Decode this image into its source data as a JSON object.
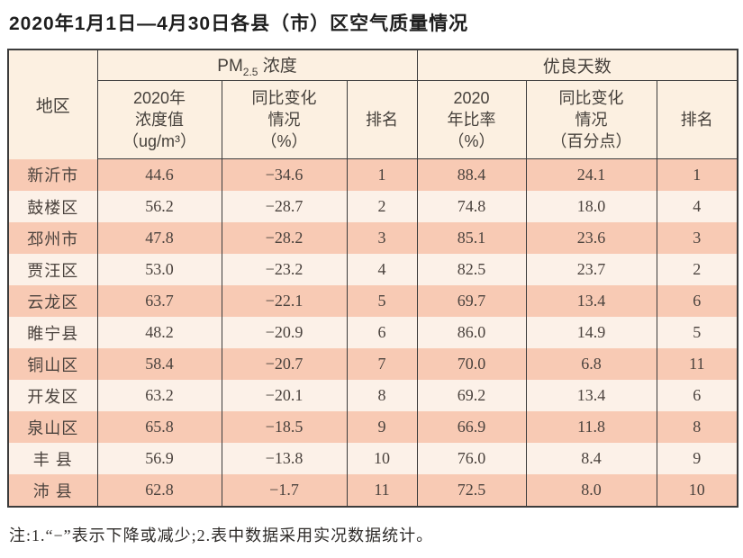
{
  "page_title": "2020年1月1日—4月30日各县（市）区空气质量情况",
  "table": {
    "corner_header": "地区",
    "group_pm25": {
      "prefix": "PM",
      "subscript": "2.5",
      "suffix": " 浓度"
    },
    "group_good_days": "优良天数",
    "col_headers": {
      "pm25_value": "2020年\n浓度值\n（ug/m³）",
      "pm25_change": "同比变化\n情况\n（%）",
      "pm25_rank": "排名",
      "good_ratio": "2020\n年比率\n（%）",
      "good_change": "同比变化\n情况\n（百分点）",
      "good_rank": "排名"
    },
    "rows": [
      {
        "region": "新沂市",
        "values": [
          "44.6",
          "−34.6",
          "1",
          "88.4",
          "24.1",
          "1"
        ]
      },
      {
        "region": "鼓楼区",
        "values": [
          "56.2",
          "−28.7",
          "2",
          "74.8",
          "18.0",
          "4"
        ]
      },
      {
        "region": "邳州市",
        "values": [
          "47.8",
          "−28.2",
          "3",
          "85.1",
          "23.6",
          "3"
        ]
      },
      {
        "region": "贾汪区",
        "values": [
          "53.0",
          "−23.2",
          "4",
          "82.5",
          "23.7",
          "2"
        ]
      },
      {
        "region": "云龙区",
        "values": [
          "63.7",
          "−22.1",
          "5",
          "69.7",
          "13.4",
          "6"
        ]
      },
      {
        "region": "睢宁县",
        "values": [
          "48.2",
          "−20.9",
          "6",
          "86.0",
          "14.9",
          "5"
        ]
      },
      {
        "region": "铜山区",
        "values": [
          "58.4",
          "−20.7",
          "7",
          "70.0",
          "6.8",
          "11"
        ]
      },
      {
        "region": "开发区",
        "values": [
          "63.2",
          "−20.1",
          "8",
          "69.2",
          "13.4",
          "6"
        ]
      },
      {
        "region": "泉山区",
        "values": [
          "65.8",
          "−18.5",
          "9",
          "66.9",
          "11.8",
          "8"
        ]
      },
      {
        "region": "丰 县",
        "values": [
          "56.9",
          "−13.8",
          "10",
          "76.0",
          "8.4",
          "9"
        ]
      },
      {
        "region": "沛 县",
        "values": [
          "62.8",
          "−1.7",
          "11",
          "72.5",
          "8.0",
          "10"
        ]
      }
    ]
  },
  "footnote": "注:1.“−”表示下降或减少;2.表中数据采用实况数据统计。",
  "colors": {
    "row_odd_bg": "#f8cab4",
    "row_even_bg": "#fcf1e8",
    "header_bg": "#fcf0e1",
    "border": "#3c3c3c",
    "text": "#453e3a"
  }
}
